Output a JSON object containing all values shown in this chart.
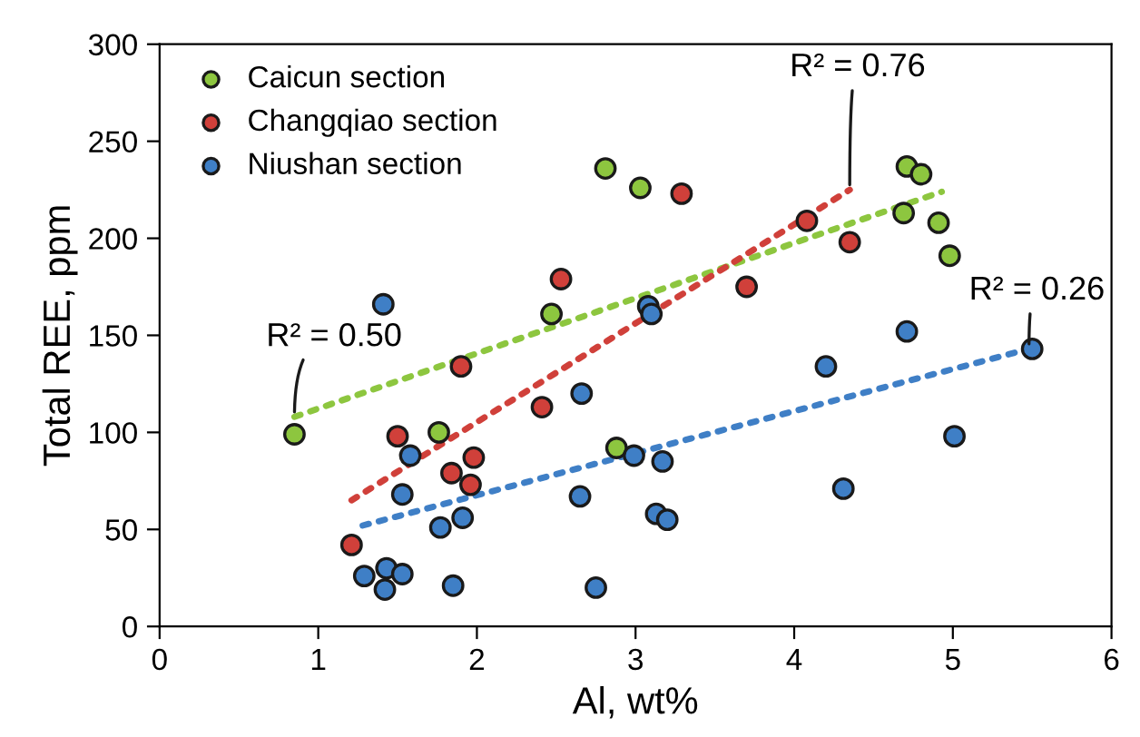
{
  "chart_data": {
    "type": "scatter",
    "xlabel": "Al, wt%",
    "ylabel": "Total REE, ppm",
    "xlim": [
      0,
      6
    ],
    "ylim": [
      0,
      300
    ],
    "xticks": [
      0,
      1,
      2,
      3,
      4,
      5,
      6
    ],
    "yticks": [
      0,
      50,
      100,
      150,
      200,
      250,
      300
    ],
    "grid": false,
    "legend": "top left",
    "marker": "circle",
    "series": [
      {
        "name": "Caicun section",
        "color": "#8dc63f",
        "x": [
          0.85,
          1.76,
          2.88,
          2.81,
          2.47,
          3.03,
          4.71,
          4.8,
          4.69,
          4.91,
          4.98
        ],
        "values": [
          99,
          100,
          92,
          236,
          161,
          226,
          237,
          233,
          213,
          208,
          191
        ]
      },
      {
        "name": "Changqiao section",
        "color": "#d0403a",
        "x": [
          2.53,
          1.9,
          3.29,
          4.08,
          4.35,
          3.7,
          2.41,
          1.5,
          1.98,
          1.84,
          1.96,
          1.21
        ],
        "values": [
          179,
          134,
          223,
          209,
          198,
          175,
          113,
          98,
          87,
          79,
          73,
          42
        ]
      },
      {
        "name": "Niushan section",
        "color": "#3f7fc6",
        "x": [
          1.41,
          3.08,
          3.1,
          4.71,
          5.5,
          4.2,
          2.66,
          1.58,
          2.99,
          3.17,
          5.01,
          4.31,
          3.13,
          3.2,
          1.53,
          2.65,
          1.91,
          1.77,
          1.29,
          1.43,
          1.53,
          1.42,
          1.85,
          2.75
        ],
        "values": [
          166,
          165,
          161,
          152,
          143,
          134,
          120,
          88,
          88,
          85,
          98,
          71,
          58,
          55,
          68,
          67,
          56,
          51,
          26,
          30,
          27,
          19,
          21,
          20
        ]
      },
      {
        "type": "line",
        "line_style": "dotted",
        "marker": "none",
        "color": "#8dc63f",
        "x": [
          0.85,
          4.93
        ],
        "values": [
          108,
          224
        ]
      },
      {
        "type": "line",
        "line_style": "dotted",
        "marker": "none",
        "color": "#d0403a",
        "x": [
          1.21,
          4.35
        ],
        "values": [
          65,
          225
        ]
      },
      {
        "type": "line",
        "line_style": "dotted",
        "marker": "none",
        "color": "#3f7fc6",
        "x": [
          1.28,
          5.48
        ],
        "values": [
          52,
          143
        ]
      }
    ],
    "annotations": [
      {
        "text": "R² = 0.50",
        "x": 0.85,
        "y": 108
      },
      {
        "text": "R² = 0.76",
        "x": 4.35,
        "y": 225
      },
      {
        "text": "R² = 0.26",
        "x": 5.48,
        "y": 143
      }
    ]
  }
}
